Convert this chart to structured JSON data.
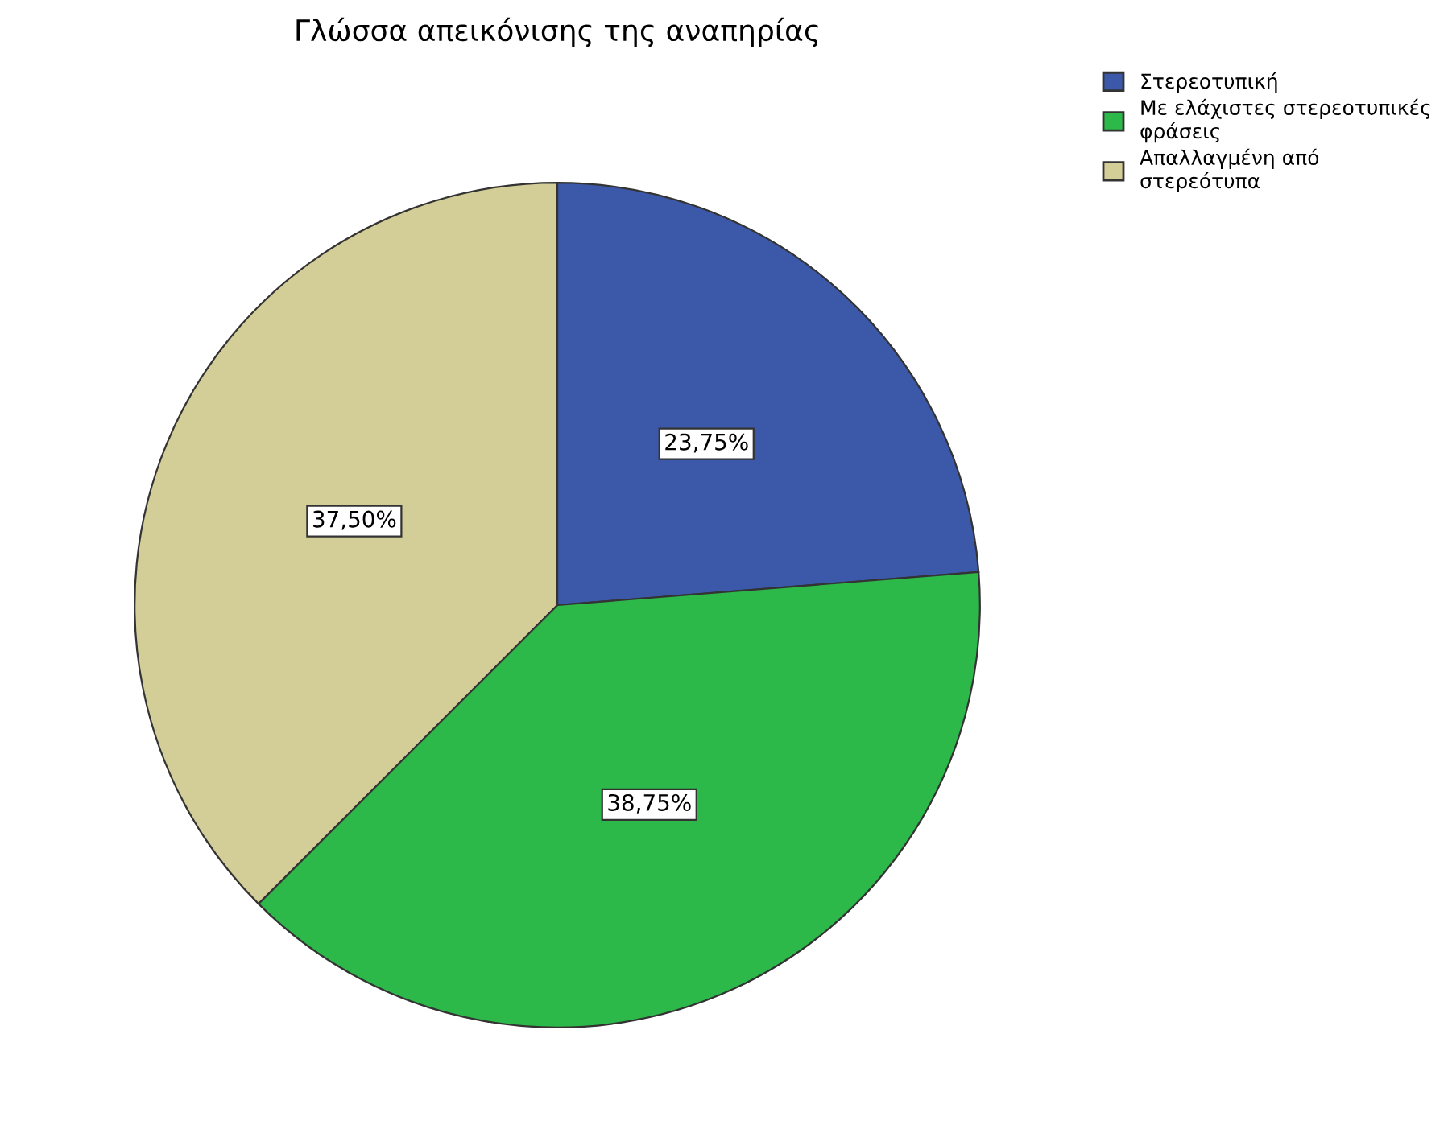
{
  "chart_data": {
    "type": "pie",
    "title": "Γλώσσα απεικόνισης της αναπηρίας",
    "categories": [
      "Στερεοτυπική",
      "Με ελάχιστες στερεοτυπικές φράσεις",
      "Απαλλαγμένη από στερεότυπα"
    ],
    "values": [
      23.75,
      38.75,
      37.5
    ],
    "colors": [
      "#3c58a8",
      "#2db84a",
      "#d3cd97"
    ],
    "value_labels": [
      "23,75%",
      "38,75%",
      "37,50%"
    ],
    "legend": "top right"
  }
}
